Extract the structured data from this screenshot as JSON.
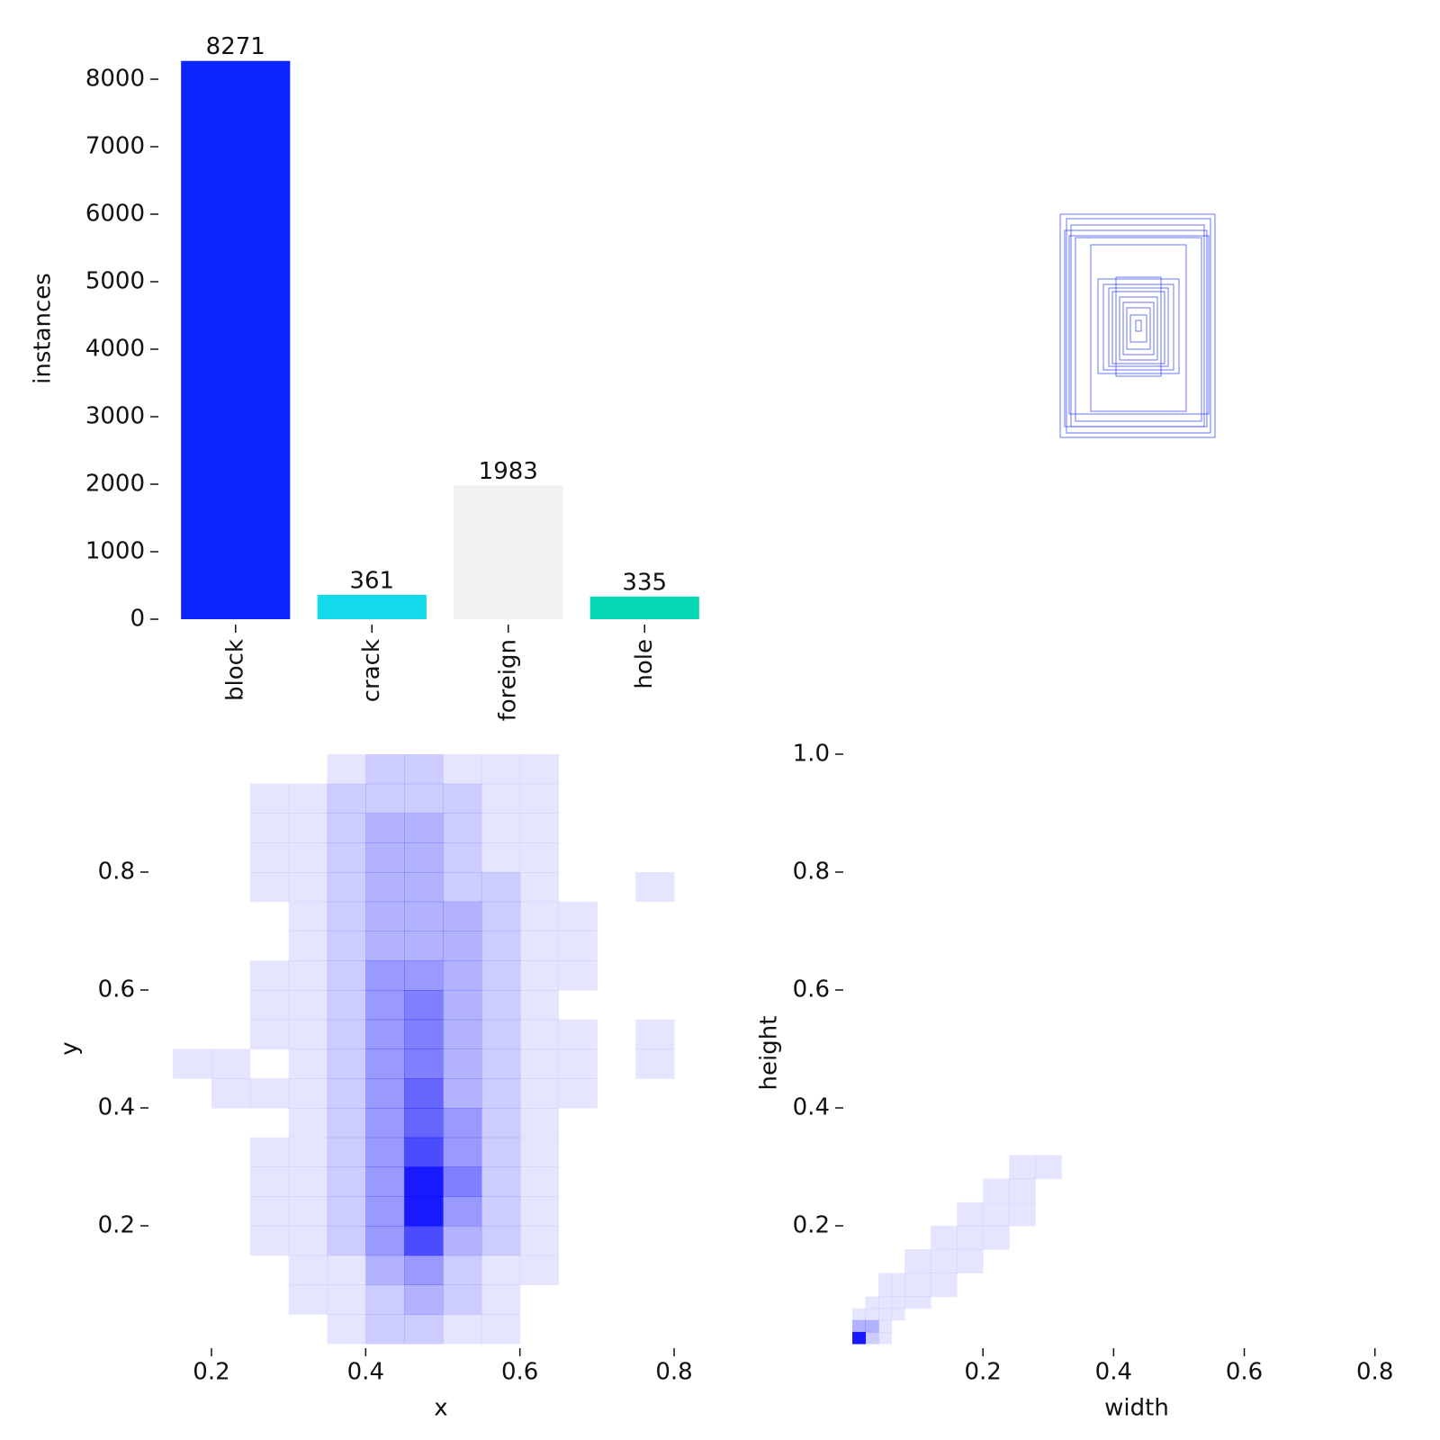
{
  "chart_data": [
    {
      "type": "bar",
      "ylabel": "instances",
      "categories": [
        "block",
        "crack",
        "foreign",
        "hole"
      ],
      "values": [
        8271,
        361,
        1983,
        335
      ],
      "colors": [
        "#0b26ff",
        "#14dbeb",
        "#f2f2f2",
        "#05d9b6"
      ],
      "ylim": [
        0,
        8500
      ],
      "yticks": [
        0,
        1000,
        2000,
        3000,
        4000,
        5000,
        6000,
        7000,
        8000
      ]
    },
    {
      "type": "hist2d",
      "xlabel": "x",
      "ylabel": "y",
      "color": "#0000ff",
      "xlim": [
        0.13,
        0.87
      ],
      "ylim": [
        0,
        1
      ],
      "xticks": [
        0.2,
        0.4,
        0.6,
        0.8
      ],
      "yticks": [
        0.2,
        0.4,
        0.6,
        0.8
      ],
      "xbins": [
        0.15,
        0.2,
        0.25,
        0.3,
        0.35,
        0.4,
        0.45,
        0.5,
        0.55,
        0.6,
        0.65,
        0.7,
        0.75,
        0.8,
        0.85
      ],
      "ybins": [
        0,
        0.05,
        0.1,
        0.15,
        0.2,
        0.25,
        0.3,
        0.35,
        0.4,
        0.45,
        0.5,
        0.55,
        0.6,
        0.65,
        0.7,
        0.75,
        0.8,
        0.85,
        0.9,
        0.95,
        1
      ],
      "values": [
        [
          0,
          0,
          0,
          0,
          1,
          2,
          2,
          1,
          1,
          0,
          0,
          0,
          0,
          0
        ],
        [
          0,
          0,
          0,
          1,
          1,
          2,
          3,
          2,
          1,
          0,
          0,
          0,
          0,
          0
        ],
        [
          0,
          0,
          0,
          1,
          1,
          3,
          4,
          2,
          1,
          1,
          0,
          0,
          0,
          0
        ],
        [
          0,
          0,
          1,
          1,
          2,
          4,
          7,
          3,
          2,
          1,
          0,
          0,
          0,
          0
        ],
        [
          0,
          0,
          1,
          1,
          2,
          4,
          9,
          4,
          2,
          1,
          0,
          0,
          0,
          0
        ],
        [
          0,
          0,
          1,
          1,
          2,
          4,
          9,
          5,
          2,
          1,
          0,
          0,
          0,
          0
        ],
        [
          0,
          0,
          1,
          1,
          2,
          4,
          7,
          4,
          2,
          1,
          0,
          0,
          0,
          0
        ],
        [
          0,
          0,
          0,
          1,
          2,
          4,
          6,
          4,
          2,
          1,
          0,
          0,
          0,
          0
        ],
        [
          0,
          1,
          1,
          1,
          2,
          4,
          6,
          3,
          2,
          1,
          1,
          0,
          0,
          0
        ],
        [
          1,
          1,
          0,
          1,
          2,
          4,
          5,
          3,
          2,
          1,
          1,
          0,
          1,
          0
        ],
        [
          0,
          0,
          1,
          1,
          2,
          4,
          5,
          3,
          2,
          1,
          1,
          0,
          1,
          0
        ],
        [
          0,
          0,
          1,
          1,
          2,
          4,
          5,
          3,
          2,
          1,
          0,
          0,
          0,
          0
        ],
        [
          0,
          0,
          1,
          1,
          2,
          4,
          4,
          3,
          2,
          1,
          1,
          0,
          0,
          0
        ],
        [
          0,
          0,
          0,
          1,
          2,
          3,
          3,
          3,
          2,
          1,
          1,
          0,
          0,
          0
        ],
        [
          0,
          0,
          0,
          1,
          2,
          3,
          3,
          3,
          2,
          1,
          1,
          0,
          0,
          0
        ],
        [
          0,
          0,
          1,
          1,
          2,
          3,
          3,
          2,
          2,
          1,
          0,
          0,
          1,
          0
        ],
        [
          0,
          0,
          1,
          1,
          2,
          3,
          3,
          2,
          1,
          1,
          0,
          0,
          0,
          0
        ],
        [
          0,
          0,
          1,
          1,
          2,
          3,
          3,
          2,
          1,
          1,
          0,
          0,
          0,
          0
        ],
        [
          0,
          0,
          1,
          1,
          2,
          2,
          2,
          2,
          1,
          1,
          0,
          0,
          0,
          0
        ],
        [
          0,
          0,
          0,
          0,
          1,
          2,
          2,
          1,
          1,
          1,
          0,
          0,
          0,
          0
        ]
      ]
    },
    {
      "type": "hist2d",
      "xlabel": "width",
      "ylabel": "height",
      "color": "#0000ff",
      "xlim": [
        0,
        0.85
      ],
      "ylim": [
        0,
        1
      ],
      "xticks": [
        0.2,
        0.4,
        0.6,
        0.8
      ],
      "yticks": [
        0.2,
        0.4,
        0.6,
        0.8,
        {
          "value": 1,
          "label": "1.0"
        }
      ],
      "xbins": [
        0,
        0.02,
        0.04,
        0.06,
        0.08,
        0.12,
        0.16,
        0.2,
        0.24,
        0.28,
        0.32
      ],
      "ybins": [
        0,
        0.02,
        0.04,
        0.06,
        0.08,
        0.12,
        0.16,
        0.2,
        0.24,
        0.28,
        0.32
      ],
      "values": [
        [
          9,
          2,
          1,
          0,
          0,
          0,
          0,
          0,
          0,
          0
        ],
        [
          3,
          3,
          1,
          0,
          0,
          0,
          0,
          0,
          0,
          0
        ],
        [
          1,
          1,
          1,
          1,
          0,
          0,
          0,
          0,
          0,
          0
        ],
        [
          0,
          1,
          1,
          1,
          1,
          0,
          0,
          0,
          0,
          0
        ],
        [
          0,
          0,
          1,
          1,
          1,
          1,
          0,
          0,
          0,
          0
        ],
        [
          0,
          0,
          0,
          0,
          1,
          1,
          1,
          0,
          0,
          0
        ],
        [
          0,
          0,
          0,
          0,
          0,
          1,
          1,
          1,
          0,
          0
        ],
        [
          0,
          0,
          0,
          0,
          0,
          0,
          1,
          1,
          1,
          0
        ],
        [
          0,
          0,
          0,
          0,
          0,
          0,
          0,
          1,
          1,
          0
        ],
        [
          0,
          0,
          0,
          0,
          0,
          0,
          0,
          0,
          1,
          1
        ]
      ]
    }
  ]
}
